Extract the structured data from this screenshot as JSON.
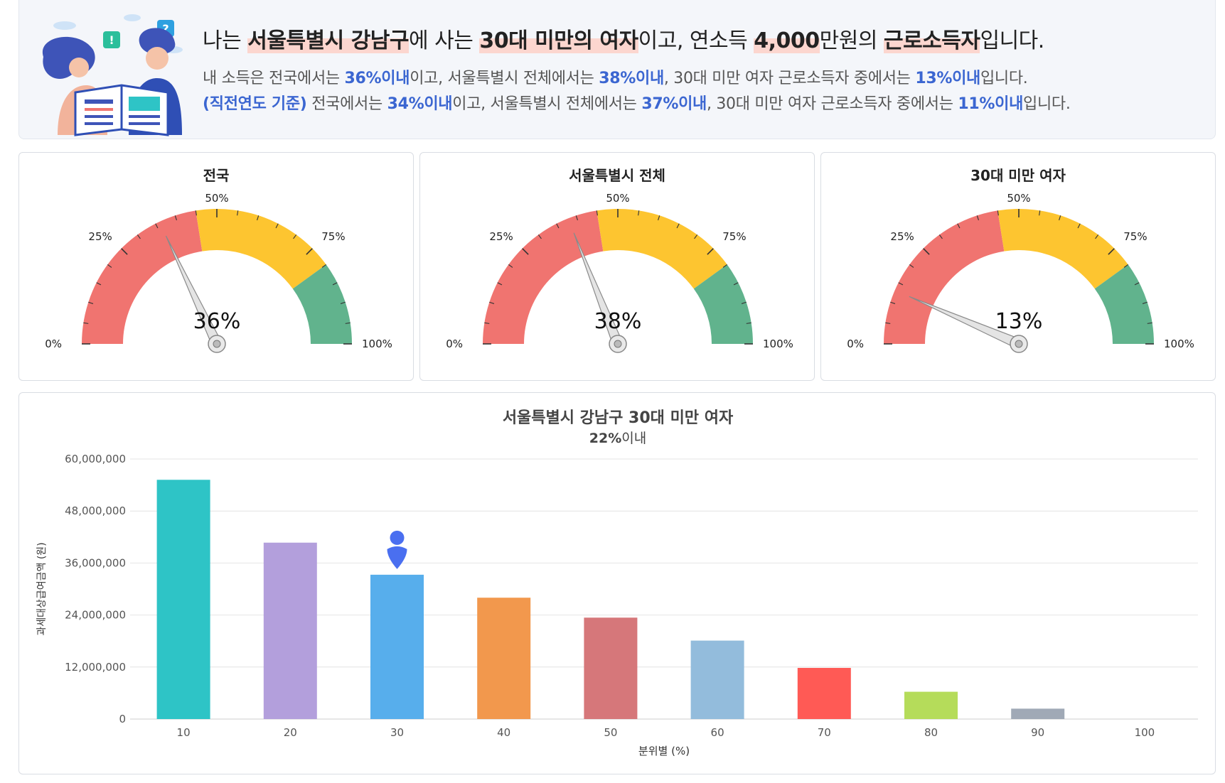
{
  "header": {
    "headline": {
      "p1": "나는 ",
      "region": "서울특별시 강남구",
      "p2": "에 사는 ",
      "group": "30대 미만의 여자",
      "p3": "이고, 연소득 ",
      "income": "4,000",
      "p4": "만원의 ",
      "type": "근로소득자",
      "p5": "입니다."
    },
    "line1": {
      "a": "내 소득은 전국에서는 ",
      "b": "36%이내",
      "c": "이고, 서울특별시 전체에서는 ",
      "d": "38%이내",
      "e": ", 30대 미만 여자 근로소득자 중에서는 ",
      "f": "13%이내",
      "g": "입니다."
    },
    "line2": {
      "a": "(직전연도 기준)",
      "b": " 전국에서는 ",
      "c": "34%이내",
      "d": "이고, 서울특별시 전체에서는 ",
      "e": "37%이내",
      "f": ", 30대 미만 여자 근로소득자 중에서는 ",
      "g": "11%이내",
      "h": "입니다."
    }
  },
  "gauges": [
    {
      "title": "전국",
      "value": 36,
      "label": "36%"
    },
    {
      "title": "서울특별시 전체",
      "value": 38,
      "label": "38%"
    },
    {
      "title": "30대 미만 여자",
      "value": 13,
      "label": "13%"
    }
  ],
  "gauge_scale": {
    "labels": [
      "0%",
      "25%",
      "50%",
      "75%",
      "100%"
    ]
  },
  "colors": {
    "gauge_red": "#f07470",
    "gauge_yellow": "#fdc530",
    "gauge_green": "#61b38d",
    "highlight": "#fcd6cf",
    "accent_blue": "#3b66d1",
    "marker": "#4a6ff0"
  },
  "chart_data": {
    "type": "bar",
    "title": "서울특별시 강남구 30대 미만 여자",
    "subtitle_value": "22%",
    "subtitle_suffix": "이내",
    "xlabel": "분위별 (%)",
    "ylabel": "과세대상급여금액 (원)",
    "categories": [
      "10",
      "20",
      "30",
      "40",
      "50",
      "60",
      "70",
      "80",
      "90",
      "100"
    ],
    "values": [
      55200000,
      40700000,
      33300000,
      28000000,
      23400000,
      18100000,
      11800000,
      6300000,
      2400000,
      0
    ],
    "colors": [
      "#2ec4c6",
      "#b39fdc",
      "#57aeec",
      "#f2984d",
      "#d6777a",
      "#93bcdc",
      "#ff5a55",
      "#b5dc5a",
      "#a0a9b6",
      "#cccccc"
    ],
    "ylim": [
      0,
      60000000
    ],
    "yticks": [
      "0",
      "12,000,000",
      "24,000,000",
      "36,000,000",
      "48,000,000",
      "60,000,000"
    ],
    "marker_category": "30",
    "grid": true
  }
}
